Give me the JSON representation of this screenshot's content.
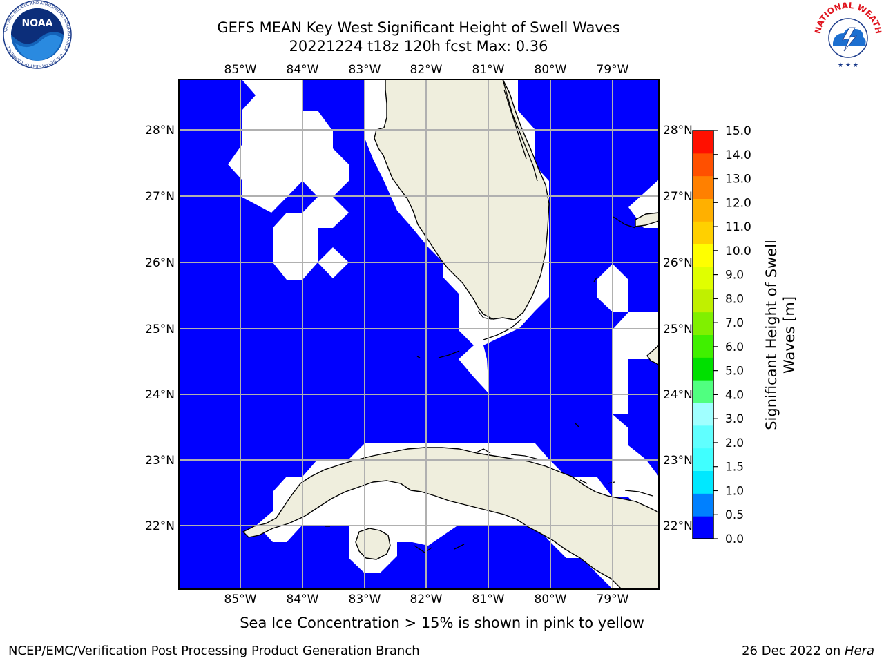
{
  "header": {
    "title": "GEFS MEAN Key West Significant Height of Swell Waves",
    "subtitle": "20221224 t18z 120h fcst   Max: 0.36"
  },
  "logos": {
    "left": "NOAA",
    "left_ring": "NATIONAL OCEANIC AND ATMOSPHERIC ADMINISTRATION · U.S. DEPARTMENT OF COMMERCE ·",
    "right_ring": "NATIONAL WEATHER SERVICE"
  },
  "map": {
    "lon_labels": [
      "85°W",
      "84°W",
      "83°W",
      "82°W",
      "81°W",
      "80°W",
      "79°W"
    ],
    "lat_labels": [
      "28°N",
      "27°N",
      "26°N",
      "25°N",
      "24°N",
      "23°N",
      "22°N"
    ],
    "ocean_color": "#0000ff",
    "land_color": "#efeedd",
    "mask_color": "#ffffff"
  },
  "colorbar": {
    "label_line1": "Significant Height of Swell",
    "label_line2": "Waves [m]",
    "ticks": [
      "0.0",
      "0.5",
      "1.0",
      "1.5",
      "2.0",
      "3.0",
      "4.0",
      "5.0",
      "6.0",
      "7.0",
      "8.0",
      "9.0",
      "10.0",
      "11.0",
      "12.0",
      "13.0",
      "14.0",
      "15.0"
    ],
    "colors": [
      "#0000ff",
      "#0080ff",
      "#00e8ff",
      "#40ffff",
      "#60ffff",
      "#a0ffff",
      "#50ff80",
      "#00e000",
      "#40f000",
      "#80f000",
      "#c0f000",
      "#e0ff00",
      "#ffff00",
      "#ffd000",
      "#ffb000",
      "#ff8000",
      "#ff5000",
      "#ff1000"
    ]
  },
  "note": "Sea Ice Concentration > 15% is shown in pink to yellow",
  "footer": {
    "left": "NCEP/EMC/Verification Post Processing Product Generation Branch",
    "date": "26 Dec 2022 on ",
    "machine": "Hera"
  }
}
